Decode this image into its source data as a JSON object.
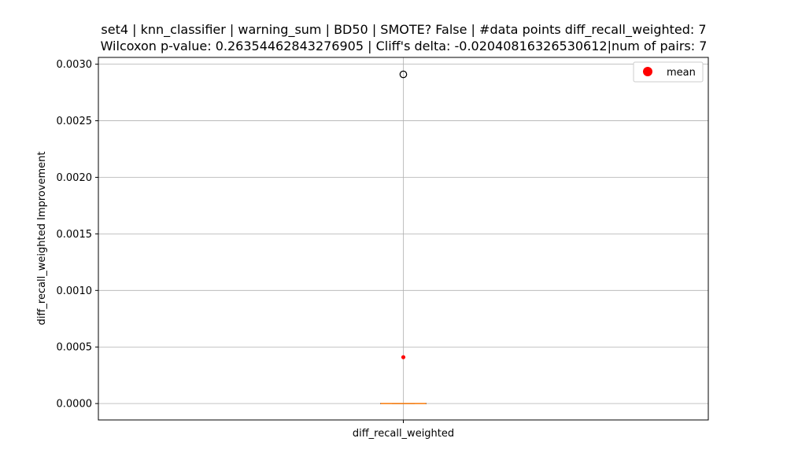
{
  "chart_data": {
    "type": "box",
    "title_lines": [
      "set4 | knn_classifier | warning_sum | BD50 | SMOTE? False | #data points diff_recall_weighted: 7",
      "Wilcoxon p-value: 0.26354462843276905 | Cliff's delta: -0.02040816326530612|num of pairs: 7"
    ],
    "xlabel": "",
    "ylabel": "diff_recall_weighted Improvement",
    "categories": [
      "diff_recall_weighted"
    ],
    "ylim": [
      -0.000145,
      0.00306
    ],
    "yticks": [
      0.0,
      0.0005,
      0.001,
      0.0015,
      0.002,
      0.0025,
      0.003
    ],
    "ytick_labels": [
      "0.0000",
      "0.0005",
      "0.0010",
      "0.0015",
      "0.0020",
      "0.0025",
      "0.0030"
    ],
    "grid": true,
    "legend": {
      "entries": [
        {
          "label": "mean",
          "color": "#ff0000"
        }
      ],
      "placement": "upper-right"
    },
    "boxes": [
      {
        "category": "diff_recall_weighted",
        "q1": 0.0,
        "median": 0.0,
        "q3": 0.0,
        "whisker_low": 0.0,
        "whisker_high": 0.0,
        "mean": 0.00041,
        "outliers": [
          0.00291
        ]
      }
    ],
    "colors": {
      "median": "#ff7f0e",
      "mean": "#ff0000",
      "box": "#000000",
      "grid": "#b0b0b0"
    }
  }
}
